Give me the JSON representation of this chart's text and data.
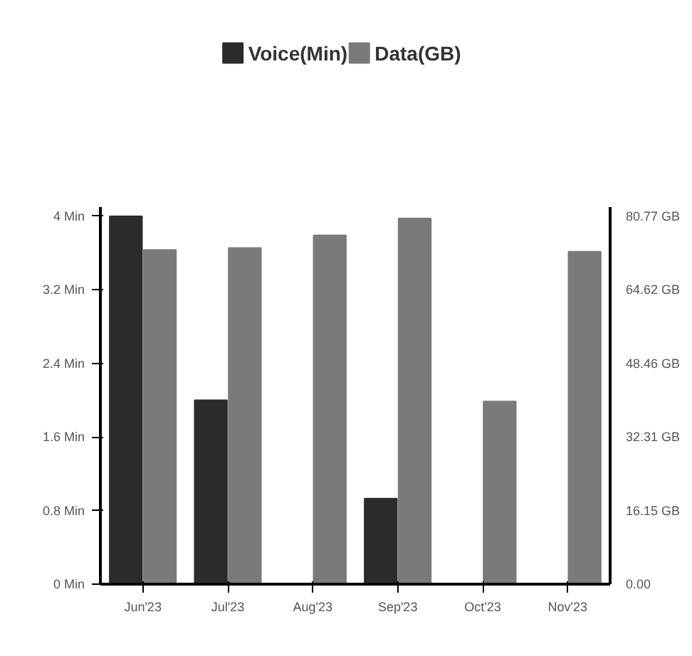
{
  "chart_data": {
    "type": "bar",
    "categories": [
      "Jun'23",
      "Jul'23",
      "Aug'23",
      "Sep'23",
      "Oct'23",
      "Nov'23"
    ],
    "series": [
      {
        "name": "Voice(Min)",
        "color": "#2b2b2b",
        "values": [
          4.0,
          2.0,
          0,
          0.93,
          0,
          0
        ]
      },
      {
        "name": "Data(GB)",
        "color": "#7a7a7a",
        "axis": "y2",
        "values": [
          73.4,
          73.8,
          76.6,
          80.3,
          40.1,
          73.0
        ]
      }
    ],
    "ylim": [
      0,
      4.1
    ],
    "yticks": [
      {
        "value": 0,
        "label": "0 Min"
      },
      {
        "value": 0.8,
        "label": "0.8 Min"
      },
      {
        "value": 1.6,
        "label": "1.6 Min"
      },
      {
        "value": 2.4,
        "label": "2.4 Min"
      },
      {
        "value": 3.2,
        "label": "3.2 Min"
      },
      {
        "value": 4,
        "label": "4 Min"
      }
    ],
    "y2lim": [
      0,
      82.8
    ],
    "y2ticks": [
      {
        "value": 0,
        "label": "0.00"
      },
      {
        "value": 16.15,
        "label": "16.15 GB"
      },
      {
        "value": 32.31,
        "label": "32.31 GB"
      },
      {
        "value": 48.46,
        "label": "48.46 GB"
      },
      {
        "value": 64.62,
        "label": "64.62 GB"
      },
      {
        "value": 80.77,
        "label": "80.77 GB"
      }
    ],
    "legend": "top",
    "grid": false
  }
}
